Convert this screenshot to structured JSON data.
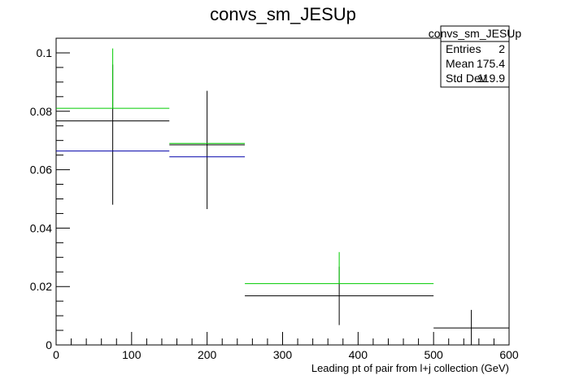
{
  "chart_data": {
    "type": "scatter",
    "title": "convs_sm_JESUp",
    "xlabel": "Leading pt of pair from l+j collection (GeV)",
    "ylabel": "",
    "xlim": [
      0,
      600
    ],
    "ylim": [
      0,
      0.105
    ],
    "x_ticks": [
      0,
      100,
      200,
      300,
      400,
      500,
      600
    ],
    "x_tick_labels": [
      "0",
      "100",
      "200",
      "300",
      "400",
      "500",
      "600"
    ],
    "y_ticks": [
      0,
      0.02,
      0.04,
      0.06,
      0.08,
      0.1
    ],
    "y_tick_labels": [
      "0",
      "0.02",
      "0.04",
      "0.06",
      "0.08",
      "0.1"
    ],
    "grid": false,
    "stats_box": {
      "title": "convs_sm_JESUp",
      "rows": [
        {
          "label": "Entries",
          "value": "2"
        },
        {
          "label": "Mean",
          "value": "175.4"
        },
        {
          "label": "Std Dev",
          "value": "119.9"
        }
      ],
      "placement": "top-right"
    },
    "series": [
      {
        "color": "#000000",
        "points": [
          {
            "xlo": 0,
            "xhi": 150,
            "y": 0.0767,
            "ylo": 0.048,
            "yhi": 0.096
          },
          {
            "xlo": 150,
            "xhi": 250,
            "y": 0.0685,
            "ylo": 0.0465,
            "yhi": 0.087
          },
          {
            "xlo": 250,
            "xhi": 500,
            "y": 0.0168,
            "ylo": 0.0068,
            "yhi": 0.0268
          },
          {
            "xlo": 500,
            "xhi": 600,
            "y": 0.0058,
            "ylo": 0.0,
            "yhi": 0.012
          }
        ]
      },
      {
        "color": "#00cc00",
        "points": [
          {
            "xlo": 0,
            "xhi": 150,
            "y": 0.081,
            "ylo": 0.081,
            "yhi": 0.1015
          },
          {
            "xlo": 150,
            "xhi": 250,
            "y": 0.069,
            "ylo": 0.069,
            "yhi": 0.069
          },
          {
            "xlo": 250,
            "xhi": 500,
            "y": 0.021,
            "ylo": 0.021,
            "yhi": 0.0318
          }
        ]
      },
      {
        "color": "#0000aa",
        "points": [
          {
            "xlo": 0,
            "xhi": 150,
            "y": 0.0664,
            "ylo": 0.0664,
            "yhi": 0.0664
          },
          {
            "xlo": 150,
            "xhi": 250,
            "y": 0.0644,
            "ylo": 0.0644,
            "yhi": 0.0644
          }
        ]
      }
    ]
  }
}
